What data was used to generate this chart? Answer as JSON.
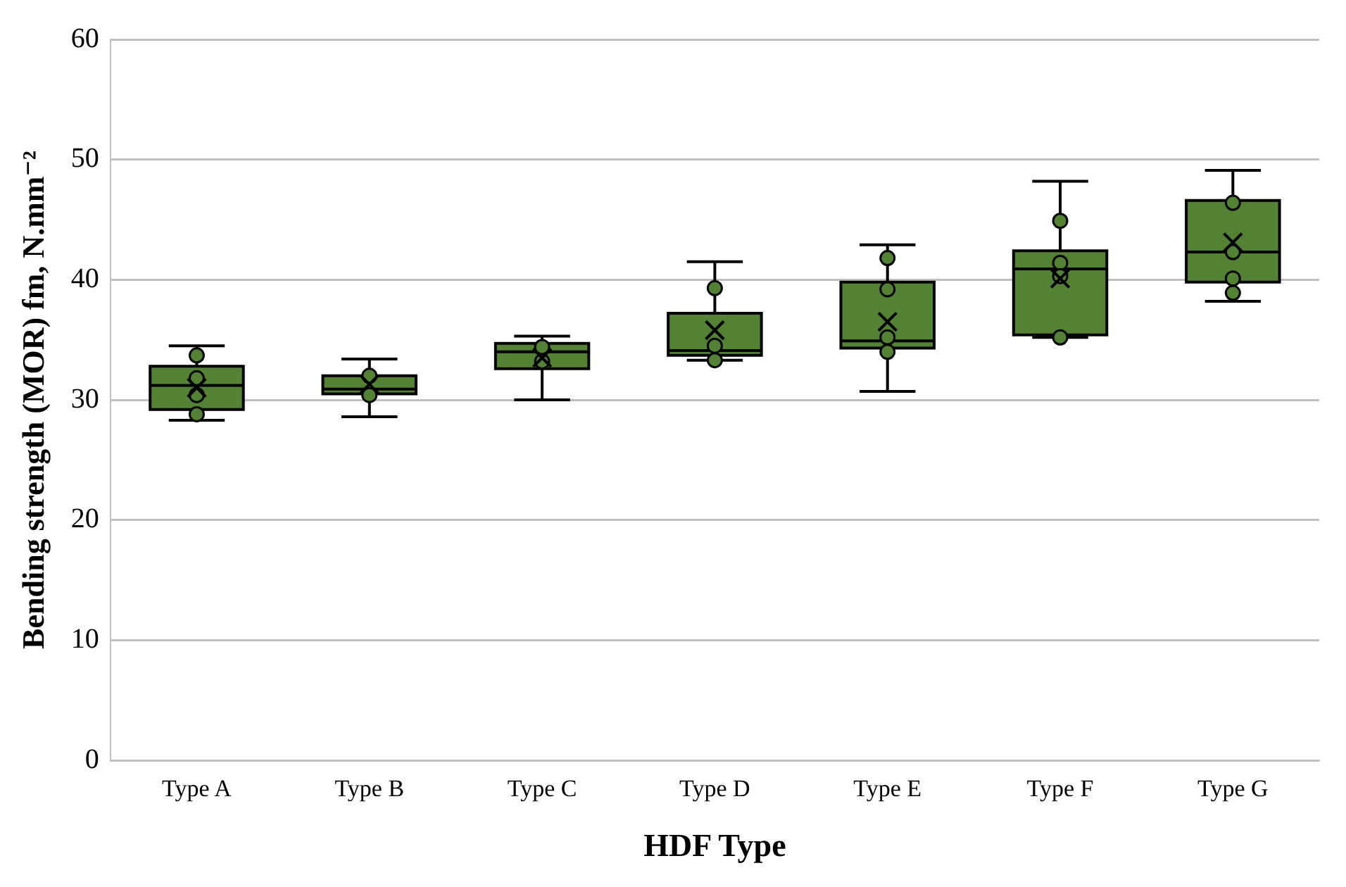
{
  "chart_data": {
    "type": "box",
    "xlabel": "HDF Type",
    "ylabel": "Bending strength (MOR) fm, N.mm⁻²",
    "categories": [
      "Type A",
      "Type B",
      "Type C",
      "Type D",
      "Type E",
      "Type F",
      "Type G"
    ],
    "color": "#548235",
    "ylim": [
      0,
      60
    ],
    "yticks": [
      0,
      10,
      20,
      30,
      40,
      50,
      60
    ],
    "grid": "y",
    "legend": false,
    "boxes": [
      {
        "low": 28.3,
        "q1": 29.2,
        "median": 31.2,
        "q3": 32.8,
        "high": 34.5,
        "mean": 31.0
      },
      {
        "low": 28.6,
        "q1": 30.5,
        "median": 30.9,
        "q3": 32.0,
        "high": 33.4,
        "mean": 31.3
      },
      {
        "low": 30.0,
        "q1": 32.6,
        "median": 34.0,
        "q3": 34.7,
        "high": 35.3,
        "mean": 33.5
      },
      {
        "low": 33.3,
        "q1": 33.7,
        "median": 34.1,
        "q3": 37.2,
        "high": 41.5,
        "mean": 35.8
      },
      {
        "low": 30.7,
        "q1": 34.3,
        "median": 34.9,
        "q3": 39.8,
        "high": 42.9,
        "mean": 36.5
      },
      {
        "low": 35.2,
        "q1": 35.4,
        "median": 40.9,
        "q3": 42.4,
        "high": 48.2,
        "mean": 40.1
      },
      {
        "low": 38.2,
        "q1": 39.8,
        "median": 42.3,
        "q3": 46.6,
        "high": 49.1,
        "mean": 43.1
      }
    ],
    "series": [
      {
        "type": "scatter",
        "color": "#548235",
        "marker": "circle",
        "x": [
          "Type A",
          "Type A",
          "Type A",
          "Type A",
          "Type B",
          "Type B",
          "Type C",
          "Type C",
          "Type D",
          "Type D",
          "Type D",
          "Type E",
          "Type E",
          "Type E",
          "Type E",
          "Type F",
          "Type F",
          "Type F",
          "Type F",
          "Type G",
          "Type G",
          "Type G",
          "Type G"
        ],
        "values": [
          33.7,
          31.8,
          30.4,
          28.8,
          32.0,
          30.4,
          34.4,
          33.2,
          39.3,
          34.5,
          33.3,
          41.8,
          39.2,
          35.2,
          34.0,
          44.9,
          41.4,
          40.3,
          35.2,
          46.4,
          42.3,
          40.1,
          38.9
        ]
      }
    ]
  }
}
